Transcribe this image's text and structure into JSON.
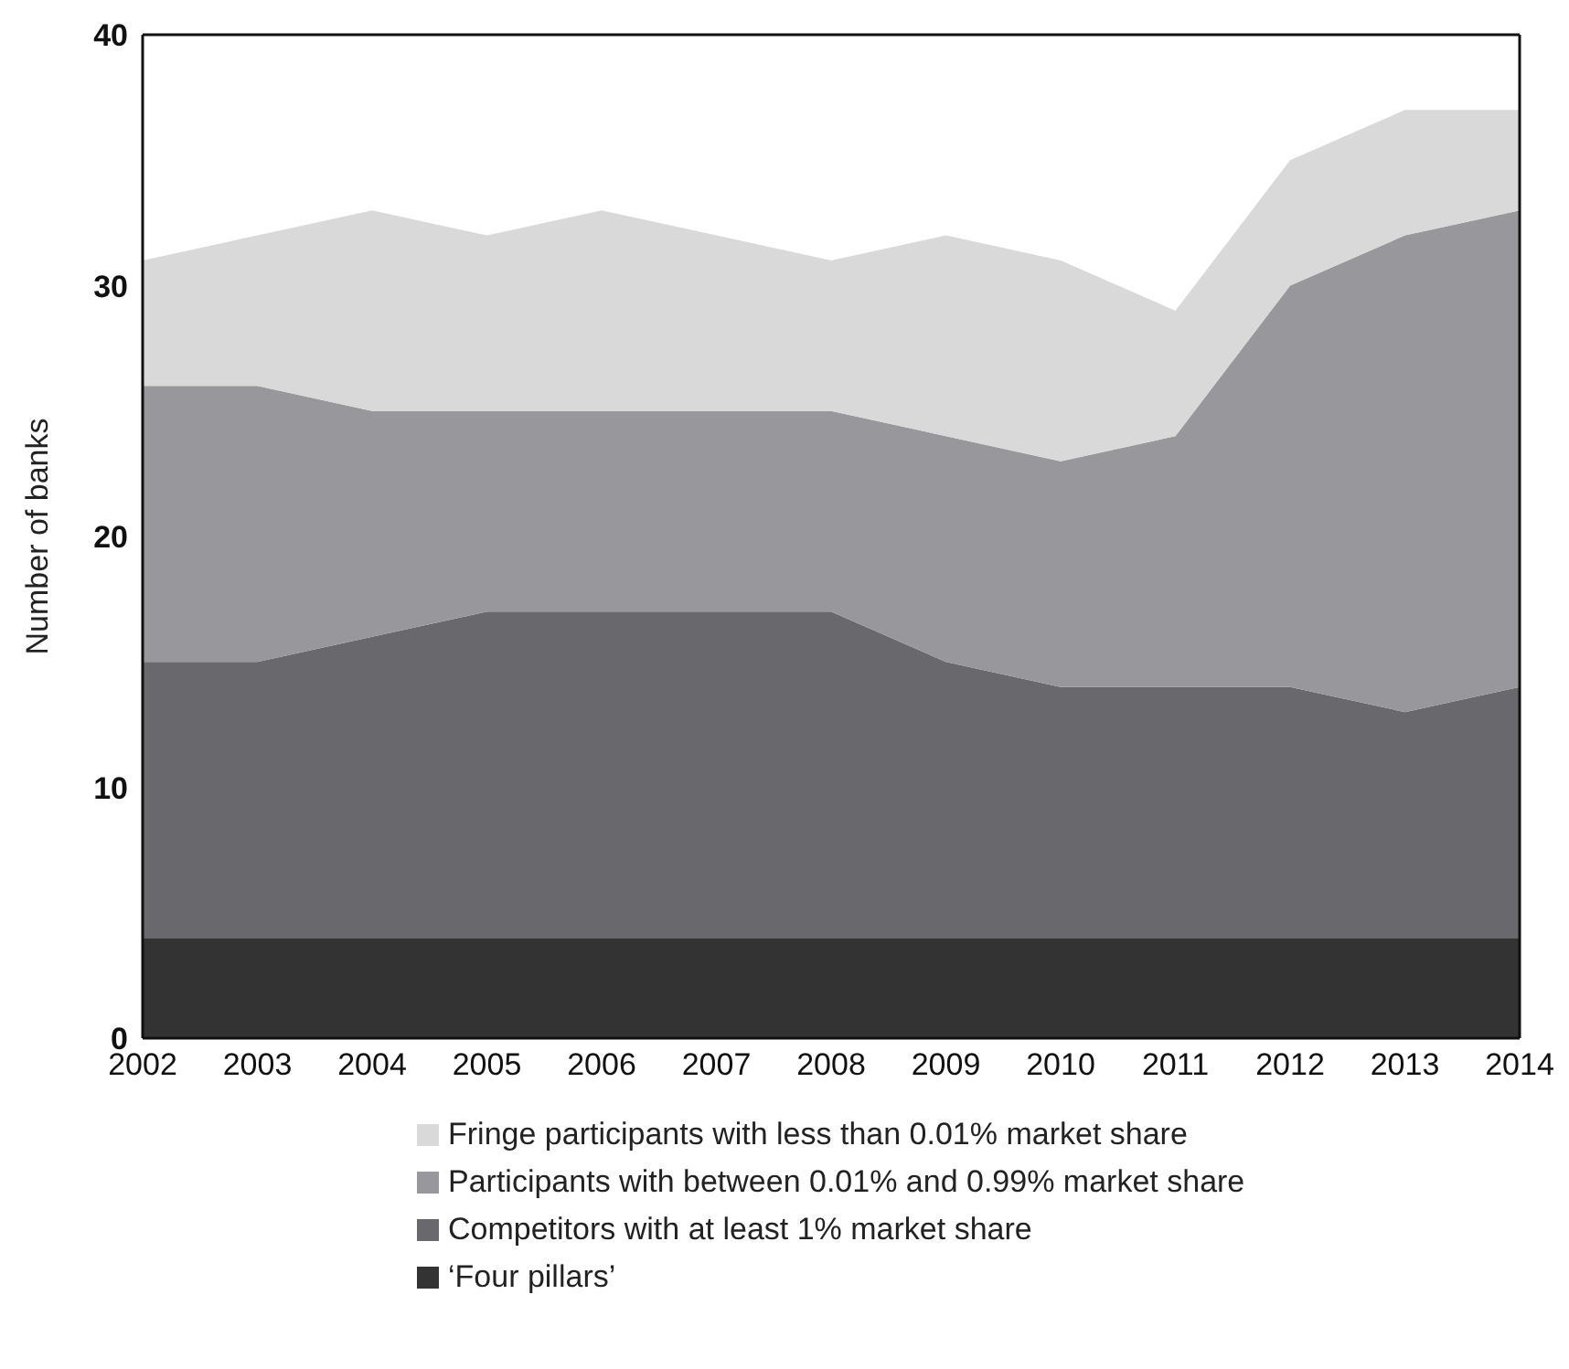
{
  "chart_data": {
    "type": "area",
    "stacked": true,
    "ylabel": "Number of banks",
    "x": [
      2002,
      2003,
      2004,
      2005,
      2006,
      2007,
      2008,
      2009,
      2010,
      2011,
      2012,
      2013,
      2014
    ],
    "xlim": [
      2002,
      2014
    ],
    "xticks": [
      2002,
      2003,
      2004,
      2005,
      2006,
      2007,
      2008,
      2009,
      2010,
      2011,
      2012,
      2013,
      2014
    ],
    "ylim": [
      0,
      40
    ],
    "yticks": [
      0,
      10,
      20,
      30,
      40
    ],
    "legend": "bottom",
    "series": [
      {
        "name": "‘Four pillars’",
        "color": "#333333",
        "values": [
          4,
          4,
          4,
          4,
          4,
          4,
          4,
          4,
          4,
          4,
          4,
          4,
          4
        ]
      },
      {
        "name": "Competitors with at least 1% market share",
        "color": "#69696d",
        "values": [
          11,
          11,
          12,
          13,
          13,
          13,
          13,
          11,
          10,
          10,
          10,
          9,
          10
        ]
      },
      {
        "name": "Participants with between 0.01% and 0.99% market share",
        "color": "#98989c",
        "values": [
          11,
          11,
          9,
          8,
          8,
          8,
          8,
          9,
          9,
          10,
          16,
          19,
          19
        ]
      },
      {
        "name": "Fringe participants with less than 0.01% market share",
        "color": "#d9d9d9",
        "values": [
          5,
          6,
          8,
          7,
          8,
          7,
          6,
          8,
          8,
          5,
          5,
          5,
          4
        ]
      }
    ]
  }
}
